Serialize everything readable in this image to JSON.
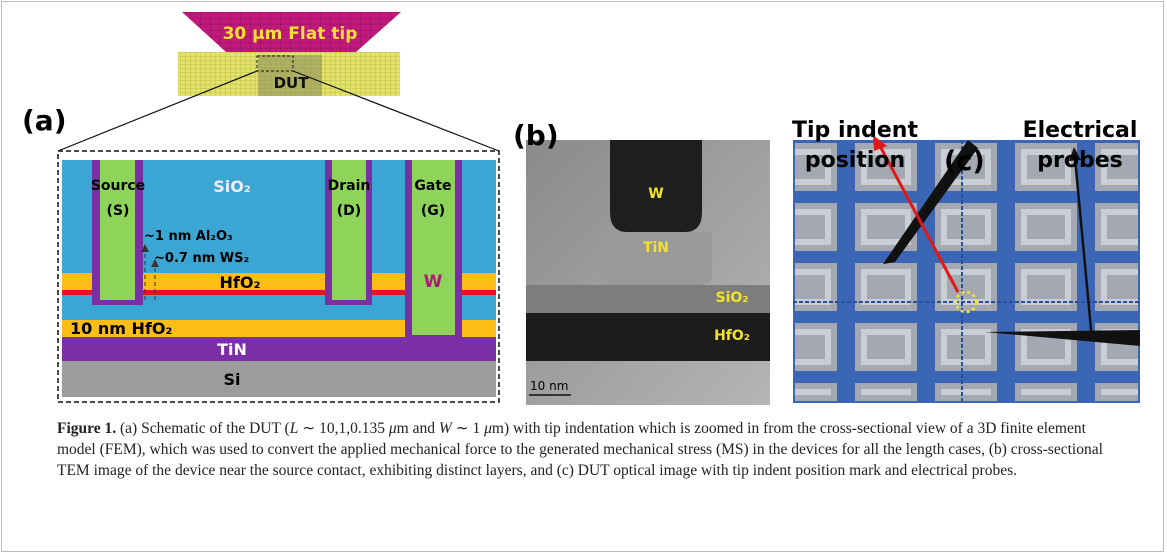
{
  "figure": {
    "panel_a": {
      "label": "(a)",
      "tip": "30 µm Flat tip",
      "dut": "DUT",
      "source": [
        "Source",
        "(S)"
      ],
      "sio2": "SiO₂",
      "drain": [
        "Drain",
        "(D)"
      ],
      "gate": [
        "Gate",
        "(G)"
      ],
      "al2o3": "~1 nm Al₂O₃",
      "ws2": "~0.7 nm WS₂",
      "hfo2": "HfO₂",
      "w": "W",
      "hfo2_10": "10 nm HfO₂",
      "tin": "TiN",
      "si": "Si"
    },
    "panel_b": {
      "label": "(b)",
      "w": "W",
      "tin": "TiN",
      "sio2": "SiO₂",
      "hfo2": "HfO₂",
      "scale": "10 nm"
    },
    "panel_c": {
      "label": "(c)",
      "tip_indent": [
        "Tip indent",
        "position"
      ],
      "probes": [
        "Electrical",
        "probes"
      ]
    },
    "caption": {
      "label": "Figure 1.",
      "segments": [
        {
          "text": " (a) Schematic of the DUT (",
          "italic": false
        },
        {
          "text": "L",
          "italic": true
        },
        {
          "text": " ∼ 10,1,0.135 ",
          "italic": false
        },
        {
          "text": "μ",
          "italic": true
        },
        {
          "text": "m and ",
          "italic": false
        },
        {
          "text": "W",
          "italic": true
        },
        {
          "text": " ∼ 1 ",
          "italic": false
        },
        {
          "text": "μ",
          "italic": true
        },
        {
          "text": "m) with tip indentation which is zoomed in from the cross-sectional view of a 3D finite element model (FEM), which was used to convert the applied mechanical force to the generated mechanical stress (MS) in the devices for all the length cases, (b) cross-sectional TEM image of the device near the source contact, exhibiting distinct layers, and (c) DUT optical image with tip indent position mark and electrical probes.",
          "italic": false
        }
      ]
    }
  }
}
